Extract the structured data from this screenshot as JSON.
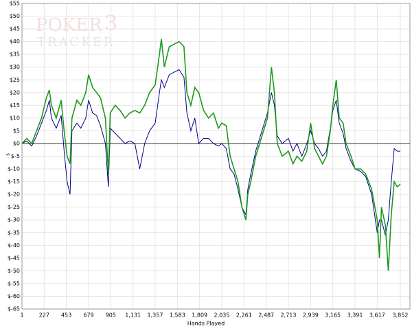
{
  "chart_data": {
    "type": "line",
    "watermark": [
      "POKER",
      "3",
      "TRACKER"
    ],
    "xlabel": "Hands Played",
    "ylabel": "$",
    "x": [
      1,
      50,
      100,
      150,
      200,
      250,
      280,
      300,
      350,
      400,
      430,
      460,
      490,
      510,
      560,
      600,
      650,
      679,
      720,
      760,
      800,
      850,
      880,
      900,
      950,
      1000,
      1050,
      1100,
      1150,
      1200,
      1250,
      1300,
      1357,
      1400,
      1420,
      1450,
      1500,
      1550,
      1600,
      1650,
      1680,
      1720,
      1760,
      1800,
      1850,
      1900,
      1950,
      2000,
      2035,
      2080,
      2120,
      2160,
      2200,
      2240,
      2280,
      2300,
      2330,
      2380,
      2420,
      2460,
      2500,
      2540,
      2570,
      2600,
      2650,
      2713,
      2760,
      2800,
      2850,
      2900,
      2939,
      2980,
      3020,
      3060,
      3100,
      3140,
      3165,
      3200,
      3230,
      3270,
      3300,
      3350,
      3391,
      3450,
      3500,
      3560,
      3617,
      3640,
      3660,
      3700,
      3730,
      3760,
      3790,
      3820,
      3852
    ],
    "series": [
      {
        "color": "#1a9a1a",
        "values": [
          0,
          2,
          0,
          5,
          10,
          18,
          21,
          15,
          10,
          17,
          5,
          -5,
          -8,
          10,
          17,
          15,
          20,
          27,
          22,
          20,
          18,
          10,
          -12,
          12,
          15,
          13,
          10,
          12,
          13,
          12,
          15,
          20,
          23,
          35,
          41,
          30,
          38,
          39,
          40,
          38,
          20,
          15,
          22,
          20,
          13,
          10,
          12,
          6,
          8,
          7,
          -5,
          -10,
          -15,
          -25,
          -30,
          -20,
          -15,
          -5,
          0,
          5,
          10,
          30,
          20,
          0,
          -5,
          -3,
          -8,
          -5,
          -7,
          -3,
          8,
          -2,
          -5,
          -8,
          -5,
          5,
          15,
          25,
          10,
          8,
          0,
          -5,
          -10,
          -10,
          -12,
          -18,
          -30,
          -45,
          -25,
          -32,
          -50,
          -28,
          -15,
          -17,
          -16
        ]
      },
      {
        "color": "#00008b",
        "values": [
          0,
          1,
          -1,
          3,
          8,
          13,
          17,
          10,
          6,
          11,
          -3,
          -15,
          -20,
          5,
          8,
          6,
          10,
          17,
          12,
          11,
          7,
          0,
          -17,
          6,
          4,
          2,
          0,
          1,
          0,
          -10,
          0,
          5,
          8,
          20,
          25,
          22,
          27,
          28,
          29,
          26,
          12,
          5,
          10,
          0,
          2,
          2,
          0,
          -1,
          0,
          -2,
          -10,
          -12,
          -18,
          -25,
          -28,
          -18,
          -12,
          -3,
          2,
          7,
          12,
          20,
          15,
          3,
          0,
          2,
          -3,
          0,
          -5,
          0,
          5,
          0,
          -2,
          -5,
          -3,
          6,
          13,
          17,
          8,
          4,
          -2,
          -7,
          -10,
          -11,
          -13,
          -20,
          -35,
          -30,
          -30,
          -36,
          -30,
          -15,
          -2,
          -3,
          -3
        ]
      }
    ],
    "xlim": [
      1,
      3950
    ],
    "xticks": [
      1,
      227,
      453,
      679,
      905,
      {
        "value": 1131,
        "label": "1,131"
      },
      {
        "value": 1357,
        "label": "1,357"
      },
      {
        "value": 1583,
        "label": "1,583"
      },
      {
        "value": 1809,
        "label": "1,809"
      },
      {
        "value": 2035,
        "label": "2,035"
      },
      {
        "value": 2261,
        "label": "2,261"
      },
      {
        "value": 2487,
        "label": "2,487"
      },
      {
        "value": 2713,
        "label": "2,713"
      },
      {
        "value": 2939,
        "label": "2,939"
      },
      {
        "value": 3165,
        "label": "3,165"
      },
      {
        "value": 3391,
        "label": "3,391"
      },
      {
        "value": 3617,
        "label": "3,617"
      },
      {
        "value": 3852,
        "label": "3,852"
      }
    ],
    "ylim": [
      -65,
      55
    ],
    "yticks": [
      {
        "value": 55,
        "label": "$55"
      },
      {
        "value": 50,
        "label": "$50"
      },
      {
        "value": 45,
        "label": "$45"
      },
      {
        "value": 40,
        "label": "$40"
      },
      {
        "value": 35,
        "label": "$35"
      },
      {
        "value": 30,
        "label": "$30"
      },
      {
        "value": 25,
        "label": "$25"
      },
      {
        "value": 20,
        "label": "$20"
      },
      {
        "value": 15,
        "label": "$15"
      },
      {
        "value": 10,
        "label": "$10"
      },
      {
        "value": 5,
        "label": "$5"
      },
      {
        "value": 0,
        "label": "$0"
      },
      {
        "value": -5,
        "label": "$-5"
      },
      {
        "value": -10,
        "label": "$-10"
      },
      {
        "value": -15,
        "label": "$-15"
      },
      {
        "value": -20,
        "label": "$-20"
      },
      {
        "value": -25,
        "label": "$-25"
      },
      {
        "value": -30,
        "label": "$-30"
      },
      {
        "value": -35,
        "label": "$-35"
      },
      {
        "value": -40,
        "label": "$-40"
      },
      {
        "value": -45,
        "label": "$-45"
      },
      {
        "value": -50,
        "label": "$-50"
      },
      {
        "value": -55,
        "label": "$-55"
      },
      {
        "value": -60,
        "label": "$-60"
      },
      {
        "value": -65,
        "label": "$-65"
      }
    ],
    "grid": true
  }
}
